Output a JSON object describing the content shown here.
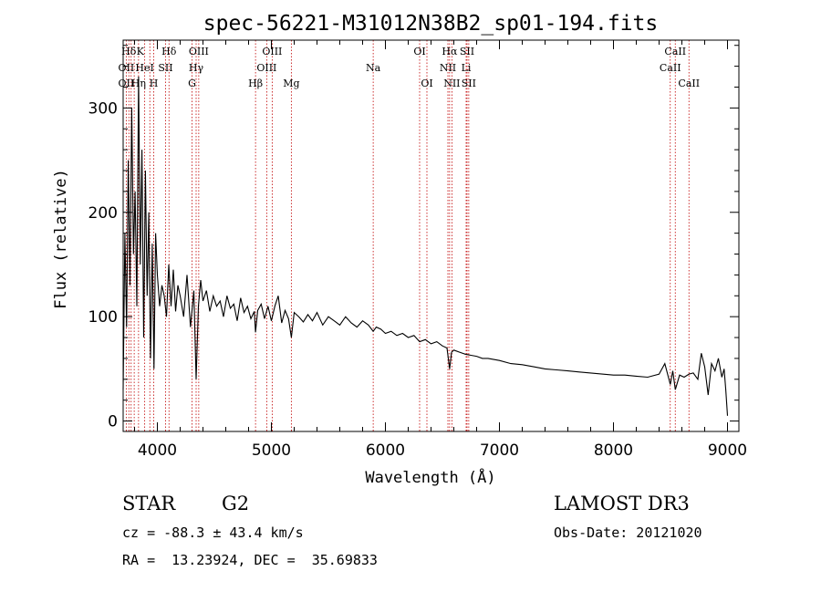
{
  "chart_data": {
    "type": "line",
    "title": "spec-56221-M31012N38B2_sp01-194.fits",
    "xlabel": "Wavelength (Å)",
    "ylabel": "Flux (relative)",
    "xlim": [
      3700,
      9100
    ],
    "ylim": [
      -10,
      365
    ],
    "xticks": [
      4000,
      5000,
      6000,
      7000,
      8000,
      9000
    ],
    "yticks": [
      0,
      100,
      200,
      300
    ],
    "series": [
      {
        "name": "spectrum",
        "x": [
          3700,
          3715,
          3730,
          3745,
          3760,
          3775,
          3790,
          3805,
          3820,
          3835,
          3850,
          3865,
          3880,
          3895,
          3910,
          3925,
          3940,
          3955,
          3970,
          3985,
          4000,
          4020,
          4040,
          4060,
          4080,
          4100,
          4120,
          4140,
          4160,
          4180,
          4200,
          4230,
          4260,
          4290,
          4320,
          4340,
          4360,
          4380,
          4400,
          4430,
          4460,
          4490,
          4520,
          4550,
          4580,
          4610,
          4640,
          4670,
          4700,
          4730,
          4760,
          4790,
          4820,
          4850,
          4861,
          4880,
          4910,
          4940,
          4970,
          5000,
          5030,
          5060,
          5090,
          5120,
          5150,
          5175,
          5200,
          5240,
          5280,
          5320,
          5360,
          5400,
          5450,
          5500,
          5550,
          5600,
          5650,
          5700,
          5750,
          5800,
          5850,
          5893,
          5920,
          5960,
          6000,
          6050,
          6100,
          6150,
          6200,
          6250,
          6300,
          6350,
          6400,
          6450,
          6500,
          6540,
          6563,
          6580,
          6600,
          6650,
          6700,
          6750,
          6800,
          6850,
          6900,
          6950,
          7000,
          7100,
          7200,
          7300,
          7400,
          7500,
          7600,
          7700,
          7800,
          7900,
          8000,
          8100,
          8200,
          8300,
          8400,
          8450,
          8498,
          8520,
          8542,
          8580,
          8620,
          8662,
          8700,
          8740,
          8770,
          8800,
          8830,
          8860,
          8890,
          8920,
          8950,
          8970,
          8985,
          9000
        ],
        "y": [
          30,
          180,
          90,
          250,
          130,
          300,
          160,
          220,
          110,
          330,
          150,
          260,
          80,
          240,
          120,
          200,
          60,
          170,
          50,
          180,
          140,
          110,
          130,
          120,
          100,
          150,
          110,
          145,
          105,
          130,
          120,
          100,
          140,
          90,
          125,
          40,
          110,
          135,
          115,
          125,
          105,
          120,
          110,
          115,
          100,
          120,
          108,
          112,
          96,
          118,
          104,
          110,
          98,
          105,
          85,
          106,
          112,
          98,
          110,
          96,
          110,
          120,
          94,
          106,
          98,
          80,
          104,
          100,
          95,
          102,
          96,
          104,
          92,
          100,
          96,
          92,
          100,
          94,
          90,
          96,
          92,
          86,
          90,
          88,
          84,
          86,
          82,
          84,
          80,
          82,
          76,
          78,
          74,
          76,
          72,
          70,
          50,
          66,
          68,
          66,
          64,
          63,
          62,
          60,
          60,
          59,
          58,
          55,
          54,
          52,
          50,
          49,
          48,
          47,
          46,
          45,
          44,
          44,
          43,
          42,
          45,
          55,
          35,
          48,
          30,
          44,
          42,
          45,
          46,
          40,
          65,
          52,
          25,
          55,
          48,
          60,
          42,
          50,
          30,
          5
        ]
      }
    ],
    "line_labels": [
      {
        "name": "Hδ",
        "row": 1,
        "wl": 3750
      },
      {
        "name": "K",
        "row": 1,
        "wl": 3850
      },
      {
        "name": "Hδ",
        "row": 1,
        "wl": 4102
      },
      {
        "name": "OIII",
        "row": 1,
        "wl": 4363
      },
      {
        "name": "OIII",
        "row": 1,
        "wl": 5007
      },
      {
        "name": "OI",
        "row": 1,
        "wl": 6300
      },
      {
        "name": "Hα",
        "row": 1,
        "wl": 6563
      },
      {
        "name": "SII",
        "row": 1,
        "wl": 6716
      },
      {
        "name": "CaII",
        "row": 1,
        "wl": 8542
      },
      {
        "name": "OII",
        "row": 2,
        "wl": 3727
      },
      {
        "name": "HeI",
        "row": 2,
        "wl": 3889
      },
      {
        "name": "SII",
        "row": 2,
        "wl": 4072
      },
      {
        "name": "Hγ",
        "row": 2,
        "wl": 4340
      },
      {
        "name": "OIII",
        "row": 2,
        "wl": 4959
      },
      {
        "name": "Na",
        "row": 2,
        "wl": 5893
      },
      {
        "name": "NII",
        "row": 2,
        "wl": 6548
      },
      {
        "name": "Li",
        "row": 2,
        "wl": 6708
      },
      {
        "name": "CaII",
        "row": 2,
        "wl": 8498
      },
      {
        "name": "OII",
        "row": 3,
        "wl": 3727
      },
      {
        "name": "Hη",
        "row": 3,
        "wl": 3835
      },
      {
        "name": "H",
        "row": 3,
        "wl": 3968
      },
      {
        "name": "G",
        "row": 3,
        "wl": 4304
      },
      {
        "name": "Hβ",
        "row": 3,
        "wl": 4861
      },
      {
        "name": "Mg",
        "row": 3,
        "wl": 5175
      },
      {
        "name": "OI",
        "row": 3,
        "wl": 6364
      },
      {
        "name": "NII",
        "row": 3,
        "wl": 6583
      },
      {
        "name": "SII",
        "row": 3,
        "wl": 6731
      },
      {
        "name": "CaII",
        "row": 3,
        "wl": 8662
      }
    ],
    "marker_lines": [
      3727,
      3750,
      3770,
      3797,
      3835,
      3889,
      3934,
      3968,
      4072,
      4102,
      4304,
      4340,
      4363,
      4861,
      4959,
      5007,
      5175,
      5893,
      6300,
      6364,
      6548,
      6563,
      6583,
      6708,
      6716,
      6731,
      8498,
      8542,
      8662
    ]
  },
  "info": {
    "class_label": "STAR",
    "subclass": "G2",
    "survey": "LAMOST DR3",
    "cz": "cz = -88.3 ± 43.4 km/s",
    "obs_date": "Obs-Date: 20121020",
    "coords": "RA =  13.23924, DEC =  35.69833"
  }
}
